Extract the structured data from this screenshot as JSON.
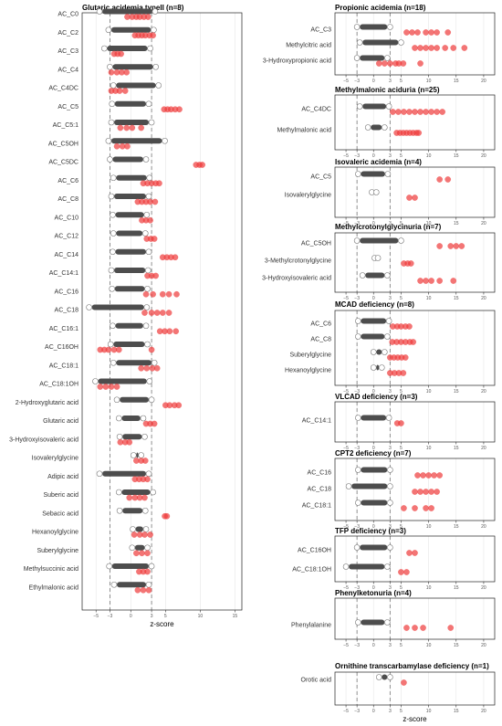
{
  "chart_data": [
    {
      "type": "scatter",
      "title": "Glutaric acidemia typeII (n=8)",
      "xlabel": "z-score",
      "xlim": [
        -7,
        16
      ],
      "xticks": [
        -5,
        -3,
        0,
        3,
        5,
        10,
        15
      ],
      "reference_lines": [
        -3,
        3
      ],
      "grid": true,
      "series": [
        {
          "role": "controls",
          "color": "#4d4d4d"
        },
        {
          "role": "patients",
          "color": "#ee3b3b"
        }
      ],
      "rows": [
        {
          "label": "AC_C0",
          "controls": [
            -4.5,
            3.5
          ],
          "patients": [
            -0.5,
            0.2,
            0.8,
            1.3,
            1.9,
            2.5
          ]
        },
        {
          "label": "AC_C2",
          "controls": [
            -3.2,
            3.3
          ],
          "patients": [
            0.6,
            1.1,
            1.6,
            2.1,
            2.7,
            3.2
          ]
        },
        {
          "label": "AC_C3",
          "controls": [
            -3.8,
            2.8
          ],
          "patients": [
            -2.4,
            -1.9,
            -1.4
          ]
        },
        {
          "label": "AC_C4",
          "controls": [
            -3.0,
            3.6
          ],
          "patients": [
            -2.8,
            -2.0,
            -1.3,
            -0.6
          ]
        },
        {
          "label": "AC_C4DC",
          "controls": [
            -2.5,
            4.0
          ],
          "patients": [
            -2.8,
            -2.2,
            -1.6,
            -0.8
          ]
        },
        {
          "label": "AC_C5",
          "controls": [
            -2.7,
            2.6
          ],
          "patients": [
            4.8,
            5.3,
            5.8,
            6.4,
            7.0
          ]
        },
        {
          "label": "AC_C5:1",
          "controls": [
            -2.8,
            3.0
          ],
          "patients": [
            -1.5,
            -0.6,
            0.2,
            1.5
          ]
        },
        {
          "label": "AC_C5OH",
          "controls": [
            -3.2,
            4.9
          ],
          "patients": [
            -2.0,
            -1.2,
            -0.5
          ]
        },
        {
          "label": "AC_C5DC",
          "controls": [
            -3.0,
            2.2
          ],
          "patients": [
            9.4,
            9.9,
            10.3
          ]
        },
        {
          "label": "AC_C6",
          "controls": [
            -2.5,
            2.7
          ],
          "patients": [
            1.8,
            2.4,
            3.0,
            3.6,
            4.1
          ]
        },
        {
          "label": "AC_C8",
          "controls": [
            -2.8,
            2.6
          ],
          "patients": [
            1.0,
            1.6,
            2.2,
            2.8,
            3.5
          ]
        },
        {
          "label": "AC_C10",
          "controls": [
            -2.6,
            2.3
          ],
          "patients": [
            1.6,
            2.2,
            2.8
          ]
        },
        {
          "label": "AC_C12",
          "controls": [
            -2.5,
            2.1
          ],
          "patients": [
            2.3,
            2.9,
            3.4
          ]
        },
        {
          "label": "AC_C14",
          "controls": [
            -2.6,
            2.6
          ],
          "patients": [
            4.6,
            5.2,
            5.8,
            6.4
          ]
        },
        {
          "label": "AC_C14:1",
          "controls": [
            -2.8,
            2.5
          ],
          "patients": [
            2.4,
            3.0,
            3.6
          ]
        },
        {
          "label": "AC_C16",
          "controls": [
            -2.7,
            2.4
          ],
          "patients": [
            2.2,
            3.2,
            4.6,
            5.5,
            6.6
          ]
        },
        {
          "label": "AC_C18",
          "controls": [
            -6.0,
            2.3
          ],
          "patients": [
            2.0,
            3.0,
            3.8,
            4.6,
            5.5
          ]
        },
        {
          "label": "AC_C16:1",
          "controls": [
            -2.6,
            2.2
          ],
          "patients": [
            4.2,
            4.9,
            5.6,
            6.5
          ]
        },
        {
          "label": "AC_C16OH",
          "controls": [
            -2.9,
            2.4
          ],
          "patients": [
            -4.4,
            -3.8,
            -3.2,
            -2.4,
            -1.7,
            3.0
          ]
        },
        {
          "label": "AC_C18:1",
          "controls": [
            -2.5,
            3.4
          ],
          "patients": [
            1.5,
            2.3,
            3.1,
            3.8
          ]
        },
        {
          "label": "AC_C18:1OH",
          "controls": [
            -5.1,
            2.7
          ],
          "patients": [
            -4.4,
            -3.6,
            -2.8,
            -2.0
          ]
        },
        {
          "label": "2-Hydroxyglutaric acid",
          "controls": [
            -2.0,
            3.0
          ],
          "patients": [
            5.0,
            5.6,
            6.3,
            6.9
          ]
        },
        {
          "label": "Glutaric acid",
          "controls": [
            -1.7,
            1.8
          ],
          "patients": [
            2.2,
            2.8,
            3.4
          ]
        },
        {
          "label": "3-Hydroxyisovaleric acid",
          "controls": [
            -1.6,
            2.0
          ],
          "patients": [
            -1.5,
            -0.8,
            -0.2
          ]
        },
        {
          "label": "Isovalerylglycine",
          "controls": [
            0.4,
            1.5
          ],
          "patients": [
            0.8,
            1.5,
            2.1
          ]
        },
        {
          "label": "Adipic acid",
          "controls": [
            -4.5,
            2.6
          ],
          "patients": [
            0.6,
            1.2,
            1.8,
            2.4
          ]
        },
        {
          "label": "Suberic acid",
          "controls": [
            -1.7,
            3.2
          ],
          "patients": [
            -0.2,
            0.6,
            1.3,
            2.0
          ]
        },
        {
          "label": "Sebacic acid",
          "controls": [
            -1.6,
            2.1
          ],
          "patients": [
            4.9,
            5.2
          ]
        },
        {
          "label": "Hexanoylglycine",
          "controls": [
            0.3,
            2.2
          ],
          "patients": [
            0.5,
            1.3,
            2.0,
            2.8
          ]
        },
        {
          "label": "Suberylglycine",
          "controls": [
            0.2,
            2.4
          ],
          "patients": [
            0.8,
            1.6,
            2.4
          ]
        },
        {
          "label": "Methylsuccinic acid",
          "controls": [
            -3.1,
            3.0
          ],
          "patients": [
            1.2,
            1.8,
            2.4
          ]
        },
        {
          "label": "Ethylmalonic acid",
          "controls": [
            -2.4,
            2.6
          ],
          "patients": [
            1.0,
            1.8,
            2.6
          ]
        }
      ]
    },
    {
      "type": "scatter",
      "title": "Propionic acidemia (n=18)",
      "xlabel": "",
      "xlim": [
        -7,
        22
      ],
      "xticks": [
        -5,
        -3,
        0,
        3,
        5,
        10,
        15,
        20
      ],
      "reference_lines": [
        -3,
        3
      ],
      "grid": true,
      "rows": [
        {
          "label": "AC_C3",
          "controls": [
            -3.0,
            3.0
          ],
          "patients": [
            6.0,
            7.0,
            8.0,
            9.5,
            10.5,
            11.5,
            13.5
          ]
        },
        {
          "label": "Methylcitric acid",
          "controls": [
            -2.5,
            5.0
          ],
          "patients": [
            7.5,
            8.5,
            9.5,
            10.5,
            11.5,
            13.0,
            14.5,
            16.5
          ]
        },
        {
          "label": "3-Hydroxypropionic acid",
          "controls": [
            -3.0,
            2.5
          ],
          "patients": [
            1.0,
            2.0,
            3.0,
            4.0,
            4.6,
            5.4,
            8.5
          ]
        }
      ]
    },
    {
      "type": "scatter",
      "title": "Methylmalonic aciduria (n=25)",
      "xlabel": "",
      "xlim": [
        -7,
        22
      ],
      "xticks": [
        -5,
        -3,
        0,
        3,
        5,
        10,
        15,
        20
      ],
      "reference_lines": [
        -3,
        3
      ],
      "grid": true,
      "rows": [
        {
          "label": "AC_C4DC",
          "controls": [
            -2.5,
            2.8
          ],
          "patients": [
            3.5,
            4.5,
            5.5,
            6.5,
            7.5,
            8.5,
            9.5,
            10.5,
            11.5,
            12.5
          ]
        },
        {
          "label": "Methylmalonic acid",
          "controls": [
            -1.0,
            2.0
          ],
          "patients": [
            4.2,
            4.8,
            5.4,
            6.0,
            6.6,
            7.2,
            7.8,
            8.2
          ]
        }
      ]
    },
    {
      "type": "scatter",
      "title": "Isovaleric acidemia (n=4)",
      "xlabel": "",
      "xlim": [
        -7,
        22
      ],
      "xticks": [
        -5,
        -3,
        0,
        3,
        5,
        10,
        15,
        20
      ],
      "reference_lines": [
        -3,
        3
      ],
      "grid": true,
      "rows": [
        {
          "label": "AC_C5",
          "controls": [
            -2.8,
            2.6
          ],
          "patients": [
            12.0,
            13.5
          ]
        },
        {
          "label": "Isovalerylglycine",
          "controls": [
            -0.3,
            0.5
          ],
          "patients": [
            6.5,
            7.5
          ]
        }
      ]
    },
    {
      "type": "scatter",
      "title": "Methylcrotonylglycinuria (n=7)",
      "xlabel": "",
      "xlim": [
        -7,
        22
      ],
      "xticks": [
        -5,
        -3,
        0,
        3,
        5,
        10,
        15,
        20
      ],
      "reference_lines": [
        -3,
        3
      ],
      "grid": true,
      "rows": [
        {
          "label": "AC_C5OH",
          "controls": [
            -3.0,
            5.0
          ],
          "patients": [
            12.0,
            14.0,
            15.0,
            16.0
          ]
        },
        {
          "label": "3-Methylcrotonylglycine",
          "controls": [
            0.2,
            0.8
          ],
          "patients": [
            5.5,
            6.2,
            6.8
          ]
        },
        {
          "label": "3-Hydroxyisovaleric acid",
          "controls": [
            -2.0,
            2.5
          ],
          "patients": [
            8.5,
            9.5,
            10.5,
            12.0,
            14.5
          ]
        }
      ]
    },
    {
      "type": "scatter",
      "title": "MCAD deficiency (n=8)",
      "xlabel": "",
      "xlim": [
        -7,
        22
      ],
      "xticks": [
        -5,
        -3,
        0,
        3,
        5,
        10,
        15,
        20
      ],
      "reference_lines": [
        -3,
        3
      ],
      "grid": true,
      "rows": [
        {
          "label": "AC_C6",
          "controls": [
            -2.8,
            2.8
          ],
          "patients": [
            3.5,
            4.3,
            5.0,
            5.8,
            6.5
          ]
        },
        {
          "label": "AC_C8",
          "controls": [
            -2.8,
            2.5
          ],
          "patients": [
            3.4,
            4.2,
            5.0,
            5.8,
            6.6,
            7.2
          ]
        },
        {
          "label": "Suberylglycine",
          "controls": [
            0.0,
            2.0
          ],
          "patients": [
            3.0,
            3.7,
            4.4,
            5.1,
            5.8
          ]
        },
        {
          "label": "Hexanoylglycine",
          "controls": [
            0.0,
            1.5
          ],
          "patients": [
            3.0,
            3.8,
            4.6,
            5.4
          ]
        }
      ]
    },
    {
      "type": "scatter",
      "title": "VLCAD deficiency (n=3)",
      "xlabel": "",
      "xlim": [
        -7,
        22
      ],
      "xticks": [
        -5,
        -3,
        0,
        3,
        5,
        10,
        15,
        20
      ],
      "reference_lines": [
        -3,
        3
      ],
      "grid": true,
      "rows": [
        {
          "label": "AC_C14:1",
          "controls": [
            -2.8,
            2.8
          ],
          "patients": [
            4.3,
            5.0
          ]
        }
      ]
    },
    {
      "type": "scatter",
      "title": "CPT2 deficiency (n=7)",
      "xlabel": "",
      "xlim": [
        -7,
        22
      ],
      "xticks": [
        -5,
        -3,
        0,
        3,
        5,
        10,
        15,
        20
      ],
      "reference_lines": [
        -3,
        3
      ],
      "grid": true,
      "rows": [
        {
          "label": "AC_C16",
          "controls": [
            -2.8,
            3.0
          ],
          "patients": [
            8.0,
            9.0,
            10.0,
            11.0,
            12.0
          ]
        },
        {
          "label": "AC_C18",
          "controls": [
            -4.5,
            3.0
          ],
          "patients": [
            7.5,
            8.5,
            9.5,
            10.5,
            11.5
          ]
        },
        {
          "label": "AC_C18:1",
          "controls": [
            -2.8,
            3.0
          ],
          "patients": [
            5.5,
            7.5,
            9.5,
            10.5
          ]
        }
      ]
    },
    {
      "type": "scatter",
      "title": "TFP deficiency (n=3)",
      "xlabel": "",
      "xlim": [
        -7,
        22
      ],
      "xticks": [
        -5,
        -3,
        0,
        3,
        5,
        10,
        15,
        20
      ],
      "reference_lines": [
        -3,
        3
      ],
      "grid": true,
      "rows": [
        {
          "label": "AC_C16OH",
          "controls": [
            -3.0,
            3.0
          ],
          "patients": [
            6.5,
            7.5
          ]
        },
        {
          "label": "AC_C18:1OH",
          "controls": [
            -5.0,
            2.5
          ],
          "patients": [
            5.0,
            6.0
          ]
        }
      ]
    },
    {
      "type": "scatter",
      "title": "Phenylketonuria (n=4)",
      "xlabel": "",
      "xlim": [
        -7,
        22
      ],
      "xticks": [
        -5,
        -3,
        0,
        3,
        5,
        10,
        15,
        20
      ],
      "reference_lines": [
        -3,
        3
      ],
      "grid": true,
      "rows": [
        {
          "label": "Phenylalanine",
          "controls": [
            -2.8,
            2.5
          ],
          "patients": [
            6.0,
            7.5,
            9.0,
            14.0
          ]
        }
      ]
    },
    {
      "type": "scatter",
      "title": "Ornithine transcarbamylase deficiency (n=1)",
      "xlabel": "z-score",
      "xlim": [
        -7,
        22
      ],
      "xticks": [
        -5,
        -3,
        0,
        3,
        5,
        10,
        15,
        20
      ],
      "reference_lines": [
        -3,
        3
      ],
      "grid": true,
      "rows": [
        {
          "label": "Orotic acid",
          "controls": [
            1.0,
            3.0
          ],
          "patients": [
            5.5
          ]
        }
      ]
    }
  ]
}
